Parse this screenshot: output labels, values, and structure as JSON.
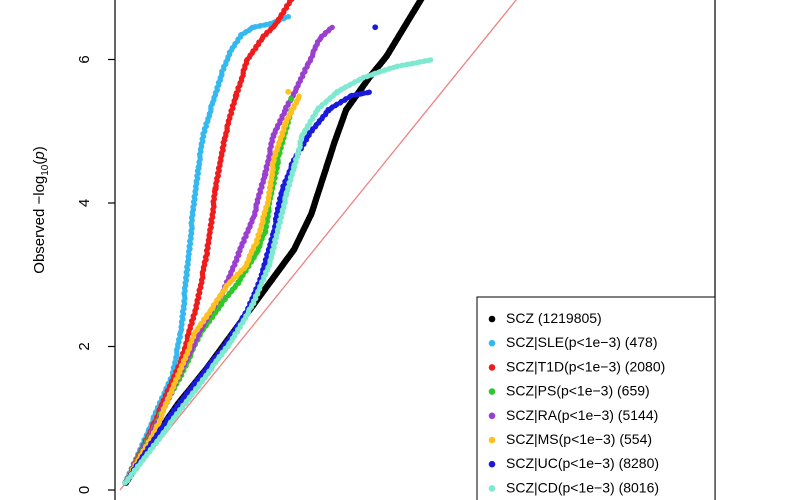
{
  "chart_data": {
    "type": "scatter",
    "ylabel_parts": [
      "Observed  −log",
      "10",
      "(",
      "p",
      ")"
    ],
    "yticks": [
      0,
      2,
      4,
      6
    ],
    "ylim": [
      0,
      7
    ],
    "xlim": [
      0,
      7
    ],
    "reference_line": {
      "color": "#f08080",
      "slope": 1,
      "intercept": 0
    },
    "legend_position": "bottom-right",
    "series": [
      {
        "name": "SCZ (1219805)",
        "color": "#000000",
        "points": [
          [
            0.1,
            0.1
          ],
          [
            0.5,
            0.62
          ],
          [
            1,
            1.2
          ],
          [
            1.5,
            1.7
          ],
          [
            2,
            2.25
          ],
          [
            2.5,
            2.8
          ],
          [
            3,
            3.35
          ],
          [
            3.3,
            3.85
          ],
          [
            3.5,
            4.35
          ],
          [
            3.7,
            4.85
          ],
          [
            3.9,
            5.3
          ],
          [
            4.3,
            5.75
          ],
          [
            4.6,
            6.05
          ],
          [
            4.9,
            6.45
          ],
          [
            5.2,
            6.85
          ],
          [
            5.4,
            7.2
          ]
        ]
      },
      {
        "name": "SCZ|SLE(p<1e−3) (478)",
        "color": "#35b8f0",
        "points": [
          [
            0.1,
            0.1
          ],
          [
            0.5,
            0.85
          ],
          [
            0.9,
            1.6
          ],
          [
            1.05,
            2.2
          ],
          [
            1.15,
            3
          ],
          [
            1.25,
            3.8
          ],
          [
            1.35,
            4.5
          ],
          [
            1.45,
            5
          ],
          [
            1.6,
            5.4
          ],
          [
            1.75,
            5.8
          ],
          [
            1.9,
            6.1
          ],
          [
            2.1,
            6.35
          ],
          [
            2.3,
            6.45
          ],
          [
            2.6,
            6.5
          ],
          [
            2.9,
            6.6
          ]
        ]
      },
      {
        "name": "SCZ|T1D(p<1e−3) (2080)",
        "color": "#ee1c1c",
        "points": [
          [
            0.1,
            0.1
          ],
          [
            0.6,
            0.95
          ],
          [
            1.05,
            1.8
          ],
          [
            1.3,
            2.5
          ],
          [
            1.5,
            3.3
          ],
          [
            1.65,
            4.2
          ],
          [
            1.8,
            4.9
          ],
          [
            2,
            5.5
          ],
          [
            2.2,
            6
          ],
          [
            2.45,
            6.3
          ],
          [
            2.7,
            6.5
          ],
          [
            3,
            6.9
          ]
        ]
      },
      {
        "name": "SCZ|PS(p<1e−3) (659)",
        "color": "#2ec82e",
        "points": [
          [
            0.1,
            0.1
          ],
          [
            0.6,
            0.9
          ],
          [
            1.05,
            1.6
          ],
          [
            1.4,
            2.2
          ],
          [
            1.75,
            2.6
          ],
          [
            2.05,
            2.9
          ],
          [
            2.35,
            3.3
          ],
          [
            2.5,
            3.6
          ],
          [
            2.6,
            4.1
          ],
          [
            2.75,
            4.7
          ],
          [
            2.95,
            5.3
          ]
        ]
      },
      {
        "name": "SCZ|RA(p<1e−3) (5144)",
        "color": "#9b3fd0",
        "points": [
          [
            0.1,
            0.1
          ],
          [
            0.65,
            0.95
          ],
          [
            1.1,
            1.75
          ],
          [
            1.5,
            2.4
          ],
          [
            1.8,
            2.8
          ],
          [
            2.05,
            3.3
          ],
          [
            2.3,
            3.8
          ],
          [
            2.5,
            4.4
          ],
          [
            2.65,
            4.95
          ],
          [
            2.85,
            5.3
          ],
          [
            3.05,
            5.6
          ],
          [
            3.25,
            5.95
          ],
          [
            3.45,
            6.3
          ],
          [
            3.65,
            6.45
          ]
        ]
      },
      {
        "name": "SCZ|MS(p<1e−3) (554)",
        "color": "#ffc020",
        "points": [
          [
            0.1,
            0.1
          ],
          [
            0.65,
            0.9
          ],
          [
            1.05,
            1.7
          ],
          [
            1.3,
            2.2
          ],
          [
            1.6,
            2.55
          ],
          [
            1.85,
            2.85
          ],
          [
            2.15,
            3.1
          ],
          [
            2.35,
            3.45
          ],
          [
            2.55,
            4
          ],
          [
            2.65,
            4.6
          ],
          [
            2.85,
            5.1
          ],
          [
            3.1,
            5.5
          ]
        ]
      },
      {
        "name": "SCZ|UC(p<1e−3) (8280)",
        "color": "#1a1adc",
        "points": [
          [
            0.1,
            0.1
          ],
          [
            0.7,
            0.85
          ],
          [
            1.25,
            1.45
          ],
          [
            1.75,
            1.95
          ],
          [
            2.2,
            2.5
          ],
          [
            2.45,
            3
          ],
          [
            2.65,
            3.6
          ],
          [
            2.8,
            4.2
          ],
          [
            3,
            4.6
          ],
          [
            3.25,
            4.95
          ],
          [
            3.6,
            5.3
          ],
          [
            4,
            5.5
          ],
          [
            4.35,
            5.55
          ]
        ]
      },
      {
        "name": "SCZ|CD(p<1e−3) (8016)",
        "color": "#7fe8d0",
        "points": [
          [
            0.1,
            0.1
          ],
          [
            0.75,
            0.8
          ],
          [
            1.35,
            1.45
          ],
          [
            1.9,
            2.05
          ],
          [
            2.3,
            2.6
          ],
          [
            2.6,
            3.2
          ],
          [
            2.8,
            3.9
          ],
          [
            3,
            4.5
          ],
          [
            3.15,
            4.95
          ],
          [
            3.4,
            5.3
          ],
          [
            3.75,
            5.55
          ],
          [
            4.2,
            5.75
          ],
          [
            4.75,
            5.9
          ],
          [
            5.4,
            6
          ]
        ]
      }
    ],
    "outliers": [
      {
        "series": 6,
        "x": 4.4,
        "y": 6.45
      },
      {
        "series": 5,
        "x": 2.9,
        "y": 5.55
      },
      {
        "series": 3,
        "x": 2.95,
        "y": 5.45
      }
    ]
  }
}
